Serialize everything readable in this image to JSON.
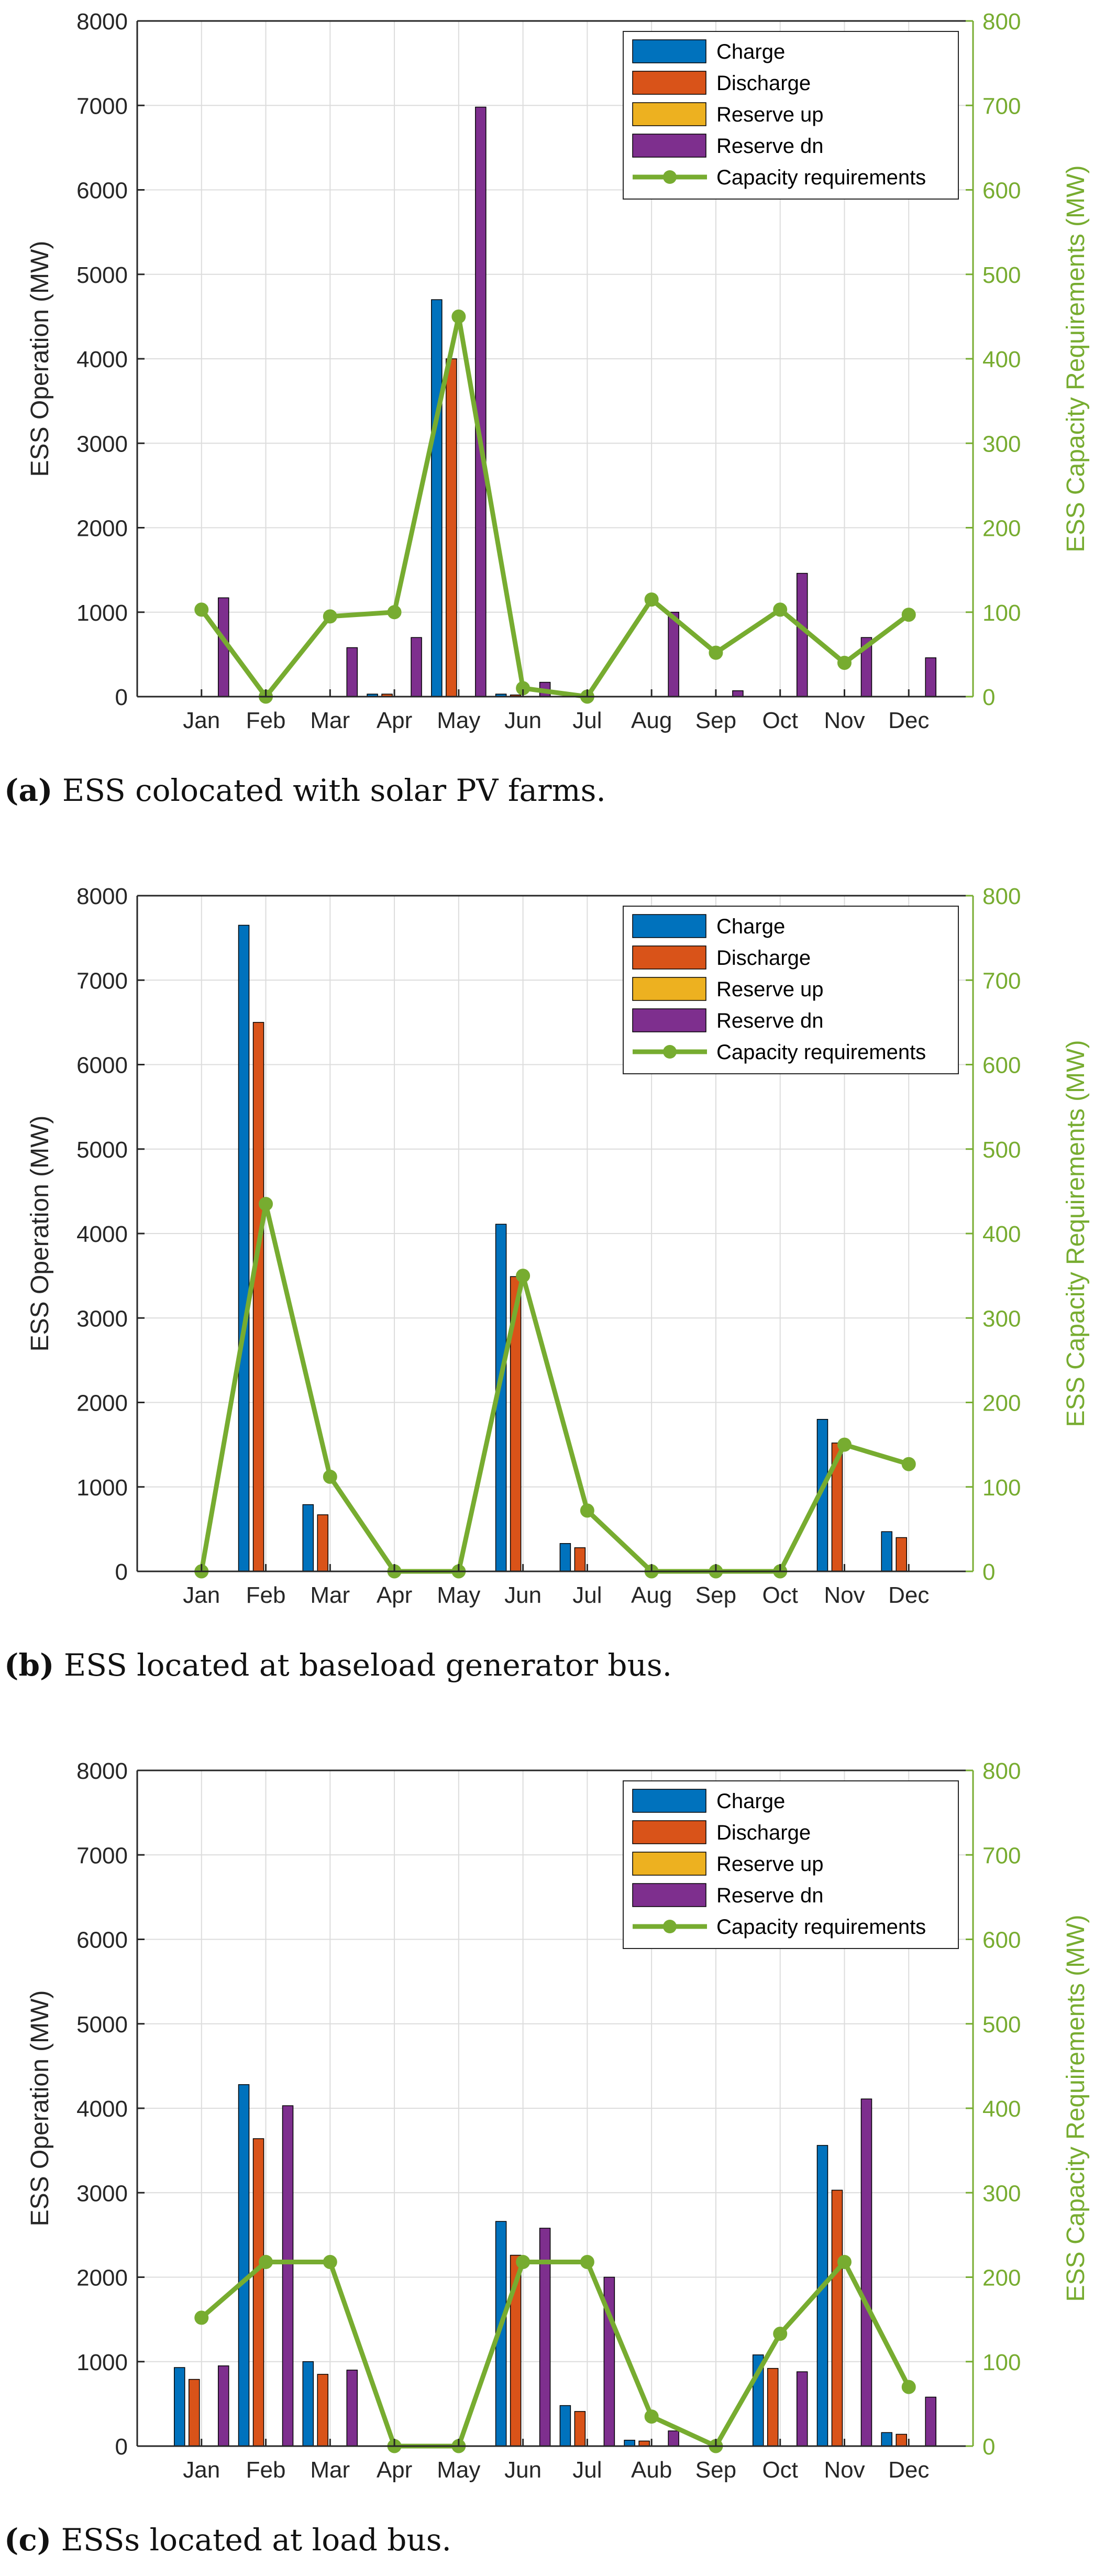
{
  "colors": {
    "charge": "#0072BD",
    "discharge": "#D95319",
    "reserve_up": "#EDB120",
    "reserve_dn": "#7E2F8E",
    "capacity": "#77AC30",
    "axis": "#262626",
    "grid": "#DCDCDC"
  },
  "chart_data": [
    {
      "id": "a",
      "type": "bar",
      "caption_letter": "(a)",
      "caption_text": " ESS colocated with solar PV farms.",
      "categories": [
        "Jan",
        "Feb",
        "Mar",
        "Apr",
        "May",
        "Jun",
        "Jul",
        "Aug",
        "Sep",
        "Oct",
        "Nov",
        "Dec"
      ],
      "ylabel_left": "ESS Operation (MW)",
      "ylabel_right": "ESS Capacity Requirements (MW)",
      "ylim_left": [
        0,
        8000
      ],
      "ylim_right": [
        0,
        800
      ],
      "yticks_left": [
        0,
        1000,
        2000,
        3000,
        4000,
        5000,
        6000,
        7000,
        8000
      ],
      "yticks_right": [
        0,
        100,
        200,
        300,
        400,
        500,
        600,
        700,
        800
      ],
      "grid": true,
      "legend_position": "top-right",
      "legend": [
        "Charge",
        "Discharge",
        "Reserve up",
        "Reserve dn",
        "Capacity requirements"
      ],
      "series": [
        {
          "name": "Charge",
          "axis": "left",
          "values": [
            0,
            0,
            0,
            30,
            4700,
            30,
            0,
            0,
            0,
            0,
            0,
            0
          ]
        },
        {
          "name": "Discharge",
          "axis": "left",
          "values": [
            0,
            0,
            0,
            30,
            4000,
            20,
            0,
            0,
            0,
            0,
            0,
            0
          ]
        },
        {
          "name": "Reserve up",
          "axis": "left",
          "values": [
            0,
            0,
            0,
            0,
            0,
            0,
            0,
            0,
            0,
            0,
            0,
            0
          ]
        },
        {
          "name": "Reserve dn",
          "axis": "left",
          "values": [
            1170,
            0,
            580,
            700,
            6980,
            170,
            0,
            1000,
            70,
            1460,
            700,
            460
          ]
        },
        {
          "name": "Capacity requirements",
          "axis": "right",
          "type": "line",
          "values": [
            103,
            0,
            95,
            100,
            450,
            10,
            0,
            115,
            52,
            103,
            40,
            97
          ]
        }
      ]
    },
    {
      "id": "b",
      "type": "bar",
      "caption_letter": "(b)",
      "caption_text": " ESS located at baseload generator bus.",
      "categories": [
        "Jan",
        "Feb",
        "Mar",
        "Apr",
        "May",
        "Jun",
        "Jul",
        "Aug",
        "Sep",
        "Oct",
        "Nov",
        "Dec"
      ],
      "ylabel_left": "ESS Operation (MW)",
      "ylabel_right": "ESS Capacity Requirements (MW)",
      "ylim_left": [
        0,
        8000
      ],
      "ylim_right": [
        0,
        800
      ],
      "yticks_left": [
        0,
        1000,
        2000,
        3000,
        4000,
        5000,
        6000,
        7000,
        8000
      ],
      "yticks_right": [
        0,
        100,
        200,
        300,
        400,
        500,
        600,
        700,
        800
      ],
      "grid": true,
      "legend_position": "top-right",
      "legend": [
        "Charge",
        "Discharge",
        "Reserve up",
        "Reserve dn",
        "Capacity requirements"
      ],
      "series": [
        {
          "name": "Charge",
          "axis": "left",
          "values": [
            0,
            7650,
            790,
            0,
            0,
            4110,
            330,
            0,
            0,
            0,
            1800,
            470
          ]
        },
        {
          "name": "Discharge",
          "axis": "left",
          "values": [
            0,
            6500,
            670,
            0,
            0,
            3490,
            280,
            0,
            0,
            0,
            1520,
            400
          ]
        },
        {
          "name": "Reserve up",
          "axis": "left",
          "values": [
            0,
            0,
            0,
            0,
            0,
            0,
            0,
            0,
            0,
            0,
            0,
            0
          ]
        },
        {
          "name": "Reserve dn",
          "axis": "left",
          "values": [
            0,
            0,
            0,
            0,
            0,
            0,
            0,
            0,
            0,
            0,
            0,
            0
          ]
        },
        {
          "name": "Capacity requirements",
          "axis": "right",
          "type": "line",
          "values": [
            0,
            435,
            112,
            0,
            0,
            350,
            72,
            0,
            0,
            0,
            150,
            127
          ]
        }
      ]
    },
    {
      "id": "c",
      "type": "bar",
      "caption_letter": "(c)",
      "caption_text": " ESSs located at load bus.",
      "categories": [
        "Jan",
        "Feb",
        "Mar",
        "Apr",
        "May",
        "Jun",
        "Jul",
        "Aub",
        "Sep",
        "Oct",
        "Nov",
        "Dec"
      ],
      "ylabel_left": "ESS Operation (MW)",
      "ylabel_right": "ESS Capacity Requirements (MW)",
      "ylim_left": [
        0,
        8000
      ],
      "ylim_right": [
        0,
        800
      ],
      "yticks_left": [
        0,
        1000,
        2000,
        3000,
        4000,
        5000,
        6000,
        7000,
        8000
      ],
      "yticks_right": [
        0,
        100,
        200,
        300,
        400,
        500,
        600,
        700,
        800
      ],
      "grid": true,
      "legend_position": "top-right",
      "legend": [
        "Charge",
        "Discharge",
        "Reserve up",
        "Reserve dn",
        "Capacity requirements"
      ],
      "series": [
        {
          "name": "Charge",
          "axis": "left",
          "values": [
            930,
            4280,
            1000,
            0,
            0,
            2660,
            480,
            70,
            0,
            1080,
            3560,
            160
          ]
        },
        {
          "name": "Discharge",
          "axis": "left",
          "values": [
            790,
            3640,
            850,
            0,
            0,
            2260,
            410,
            60,
            0,
            920,
            3030,
            140
          ]
        },
        {
          "name": "Reserve up",
          "axis": "left",
          "values": [
            0,
            0,
            0,
            0,
            0,
            0,
            0,
            0,
            0,
            0,
            0,
            0
          ]
        },
        {
          "name": "Reserve dn",
          "axis": "left",
          "values": [
            950,
            4030,
            900,
            0,
            0,
            2580,
            2000,
            180,
            0,
            880,
            4110,
            580
          ]
        },
        {
          "name": "Capacity requirements",
          "axis": "right",
          "type": "line",
          "values": [
            152,
            218,
            218,
            0,
            0,
            218,
            218,
            35,
            0,
            133,
            218,
            70
          ]
        }
      ]
    }
  ]
}
